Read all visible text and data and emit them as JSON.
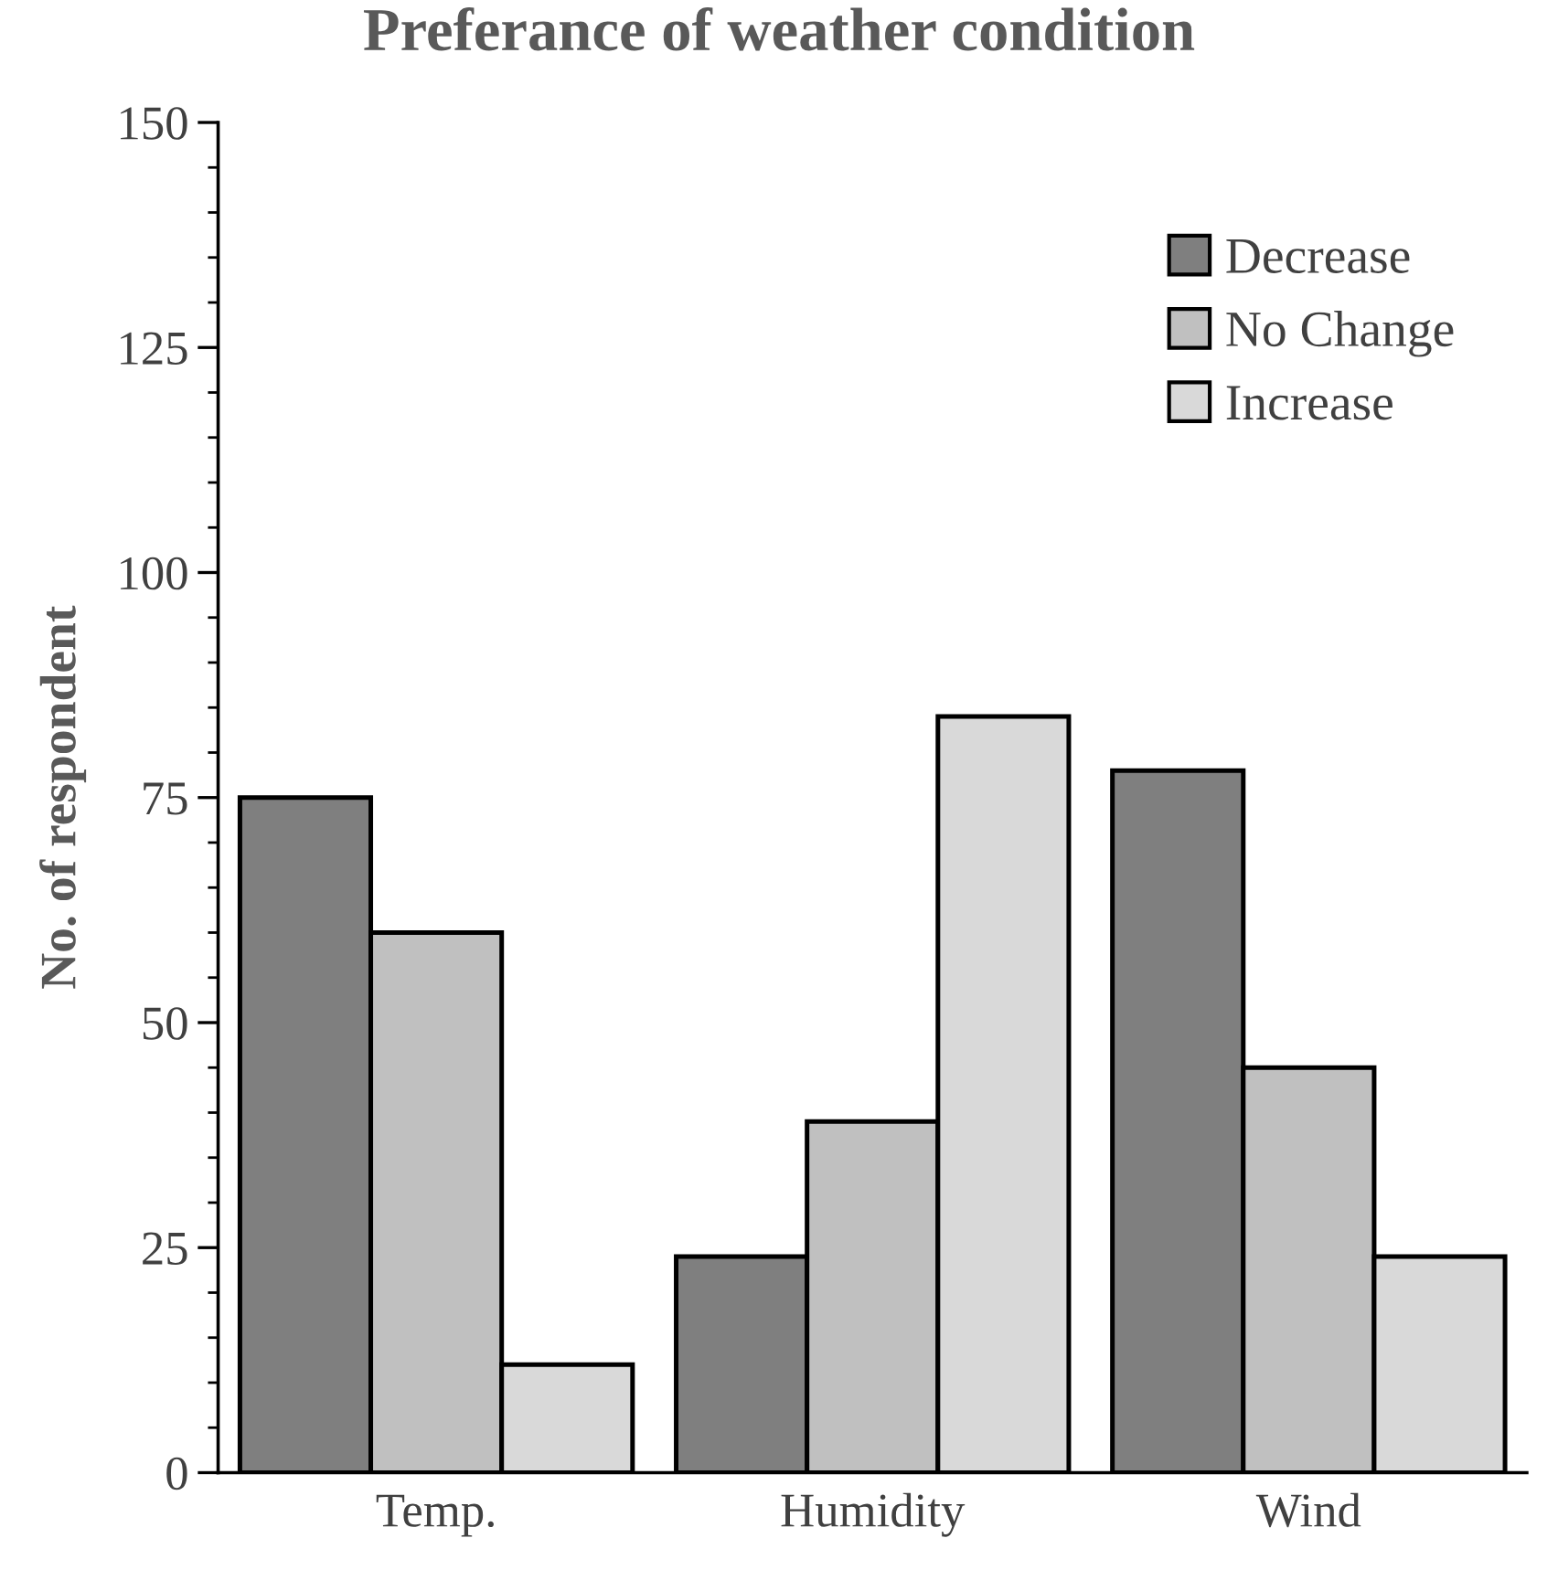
{
  "chart_data": {
    "type": "bar",
    "title": "Preferance of weather condition",
    "ylabel": "No. of respondent",
    "categories": [
      "Temp.",
      "Humidity",
      "Wind"
    ],
    "series": [
      {
        "name": "Decrease",
        "color": "#7f7f7f",
        "values": [
          75,
          24,
          78
        ]
      },
      {
        "name": "No Change",
        "color": "#c0c0c0",
        "values": [
          60,
          39,
          45
        ]
      },
      {
        "name": "Increase",
        "color": "#d9d9d9",
        "values": [
          12,
          84,
          24
        ]
      }
    ],
    "ylim": [
      0,
      150
    ],
    "yticks": [
      0,
      {
        "value": 5,
        "label": null
      },
      {
        "value": 10,
        "label": null
      },
      {
        "value": 15,
        "label": null
      },
      {
        "value": 20,
        "label": null
      },
      25,
      {
        "value": 30,
        "label": null
      },
      {
        "value": 35,
        "label": null
      },
      {
        "value": 40,
        "label": null
      },
      {
        "value": 45,
        "label": null
      },
      50,
      {
        "value": 55,
        "label": null
      },
      {
        "value": 60,
        "label": null
      },
      {
        "value": 65,
        "label": null
      },
      {
        "value": 70,
        "label": null
      },
      75,
      {
        "value": 80,
        "label": null
      },
      {
        "value": 85,
        "label": null
      },
      {
        "value": 90,
        "label": null
      },
      {
        "value": 95,
        "label": null
      },
      100,
      {
        "value": 105,
        "label": null
      },
      {
        "value": 110,
        "label": null
      },
      {
        "value": 115,
        "label": null
      },
      {
        "value": 120,
        "label": null
      },
      125,
      {
        "value": 130,
        "label": null
      },
      {
        "value": 135,
        "label": null
      },
      {
        "value": 140,
        "label": null
      },
      {
        "value": 145,
        "label": null
      },
      150
    ],
    "grid": false,
    "legend": "top right"
  }
}
